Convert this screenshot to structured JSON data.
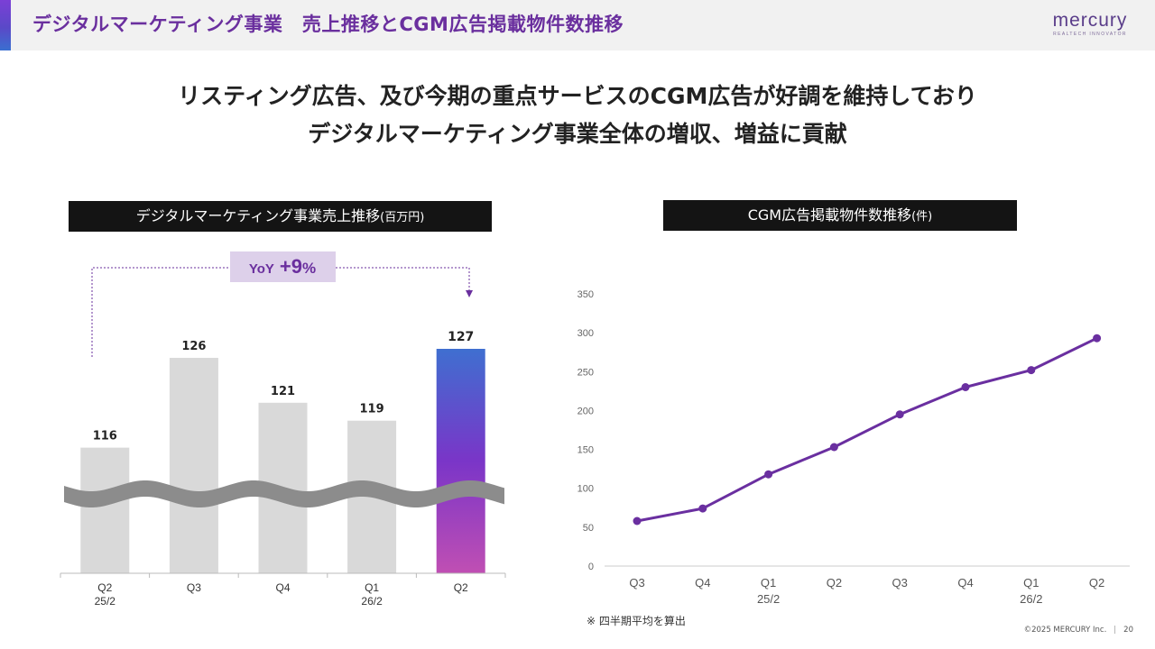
{
  "header": {
    "title": "デジタルマーケティング事業　売上推移とCGM広告掲載物件数推移",
    "logo": "mercury",
    "logo_tagline": "REALTECH INNOVATOR"
  },
  "headline": {
    "line1": "リスティング広告、及び今期の重点サービスのCGM広告が好調を維持しており",
    "line2": "デジタルマーケティング事業全体の増収、増益に貢献"
  },
  "left_panel": {
    "title": "デジタルマーケティング事業売上推移",
    "unit": "(百万円)",
    "yoy_label": "YoY",
    "yoy_value": "+9",
    "yoy_suffix": "%"
  },
  "right_panel": {
    "title": "CGM広告掲載物件数推移",
    "unit": "(件)"
  },
  "chart_data": [
    {
      "type": "bar",
      "title": "デジタルマーケティング事業売上推移(百万円)",
      "categories": [
        "Q2",
        "Q3",
        "Q4",
        "Q1",
        "Q2"
      ],
      "sublabels": [
        "25/2",
        "",
        "",
        "26/2",
        ""
      ],
      "values": [
        116,
        126,
        121,
        119,
        127
      ],
      "axis_break": true,
      "highlight_index": 4,
      "colors": {
        "bar": "#d9d9d9",
        "highlight_top": "#3f6fd0",
        "highlight_mid": "#7a35c8",
        "highlight_bottom": "#c04fb3"
      }
    },
    {
      "type": "line",
      "title": "CGM広告掲載物件数推移(件)",
      "categories": [
        "Q3",
        "Q4",
        "Q1",
        "Q2",
        "Q3",
        "Q4",
        "Q1",
        "Q2"
      ],
      "sublabels": [
        "",
        "",
        "25/2",
        "",
        "",
        "",
        "26/2",
        ""
      ],
      "values": [
        58,
        74,
        118,
        153,
        195,
        230,
        252,
        293
      ],
      "ylim": [
        0,
        350
      ],
      "yticks": [
        0,
        50,
        100,
        150,
        200,
        250,
        300,
        350
      ],
      "grid": false,
      "colors": {
        "line": "#6a2fa0"
      }
    }
  ],
  "footnote": "※ 四半期平均を算出",
  "copyright": "©2025 MERCURY Inc.",
  "page_number": "20"
}
